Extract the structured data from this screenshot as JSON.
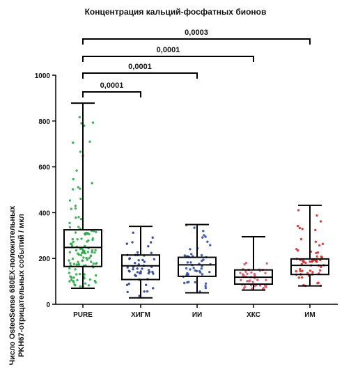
{
  "chart_data": {
    "type": "box",
    "title": "Концентрация кальций-фосфатных бионов",
    "ylabel_lines": [
      "Число OsteoSense 680EX-положительных",
      "PKH67-отрицательных событий / мкл"
    ],
    "ylim": [
      0,
      1000
    ],
    "yticks": [
      0,
      200,
      400,
      600,
      800,
      1000
    ],
    "categories": [
      "PURE",
      "ХИГМ",
      "ИИ",
      "ХКС",
      "ИМ"
    ],
    "colors": [
      "#2ea84a",
      "#2b3f8f",
      "#3350a0",
      "#d65a6a",
      "#d03030"
    ],
    "boxes": [
      {
        "min": 70,
        "q1": 165,
        "median": 248,
        "q3": 325,
        "max": 878
      },
      {
        "min": 28,
        "q1": 108,
        "median": 168,
        "q3": 215,
        "max": 340
      },
      {
        "min": 50,
        "q1": 122,
        "median": 172,
        "q3": 205,
        "max": 348
      },
      {
        "min": 62,
        "q1": 88,
        "median": 118,
        "q3": 150,
        "max": 295
      },
      {
        "min": 80,
        "q1": 130,
        "median": 170,
        "q3": 198,
        "max": 432
      }
    ],
    "comparisons": [
      {
        "from": 0,
        "to": 1,
        "label": "0,0001"
      },
      {
        "from": 0,
        "to": 2,
        "label": "0,0001"
      },
      {
        "from": 0,
        "to": 3,
        "label": "0,0001"
      },
      {
        "from": 0,
        "to": 4,
        "label": "0,0003"
      }
    ]
  }
}
